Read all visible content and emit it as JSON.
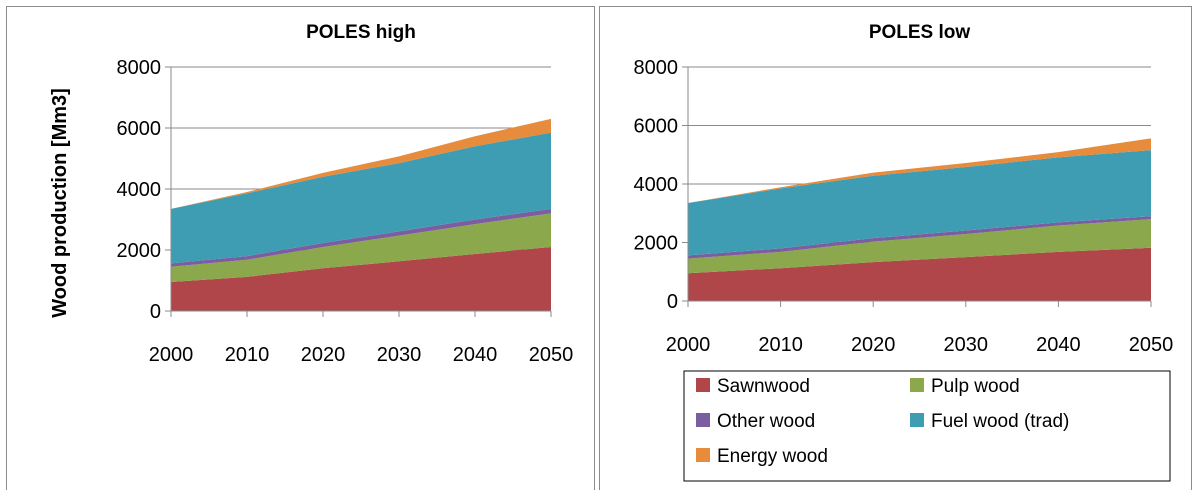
{
  "chart_data": [
    {
      "type": "area",
      "stacked": true,
      "title": "POLES high",
      "ylabel": "Wood production [Mm3]",
      "xlabel": "",
      "x": [
        2000,
        2010,
        2020,
        2030,
        2040,
        2050
      ],
      "ylim": [
        0,
        8000
      ],
      "yticks": [
        0,
        2000,
        4000,
        6000,
        8000
      ],
      "grid": true,
      "series": [
        {
          "name": "Sawnwood",
          "color": "#b0464a",
          "values": [
            950,
            1120,
            1400,
            1630,
            1870,
            2100
          ]
        },
        {
          "name": "Pulp wood",
          "color": "#8ca84c",
          "values": [
            500,
            560,
            700,
            840,
            980,
            1100
          ]
        },
        {
          "name": "Other wood",
          "color": "#7b5ea0",
          "values": [
            110,
            120,
            130,
            140,
            150,
            150
          ]
        },
        {
          "name": "Fuel wood (trad)",
          "color": "#3f9db3",
          "values": [
            1790,
            2060,
            2170,
            2240,
            2400,
            2500
          ]
        },
        {
          "name": "Energy wood",
          "color": "#e78b3c",
          "values": [
            0,
            40,
            130,
            220,
            330,
            450
          ]
        }
      ]
    },
    {
      "type": "area",
      "stacked": true,
      "title": "POLES low",
      "ylabel": "",
      "xlabel": "",
      "x": [
        2000,
        2010,
        2020,
        2030,
        2040,
        2050
      ],
      "ylim": [
        0,
        8000
      ],
      "yticks": [
        0,
        2000,
        4000,
        6000,
        8000
      ],
      "grid": true,
      "legend_position": "bottom",
      "series": [
        {
          "name": "Sawnwood",
          "color": "#b0464a",
          "values": [
            950,
            1120,
            1330,
            1500,
            1680,
            1820
          ]
        },
        {
          "name": "Pulp wood",
          "color": "#8ca84c",
          "values": [
            500,
            560,
            700,
            790,
            900,
            980
          ]
        },
        {
          "name": "Other wood",
          "color": "#7b5ea0",
          "values": [
            110,
            120,
            120,
            120,
            110,
            100
          ]
        },
        {
          "name": "Fuel wood (trad)",
          "color": "#3f9db3",
          "values": [
            1790,
            2050,
            2130,
            2170,
            2220,
            2260
          ]
        },
        {
          "name": "Energy wood",
          "color": "#e78b3c",
          "values": [
            0,
            40,
            110,
            140,
            180,
            400
          ]
        }
      ]
    }
  ]
}
